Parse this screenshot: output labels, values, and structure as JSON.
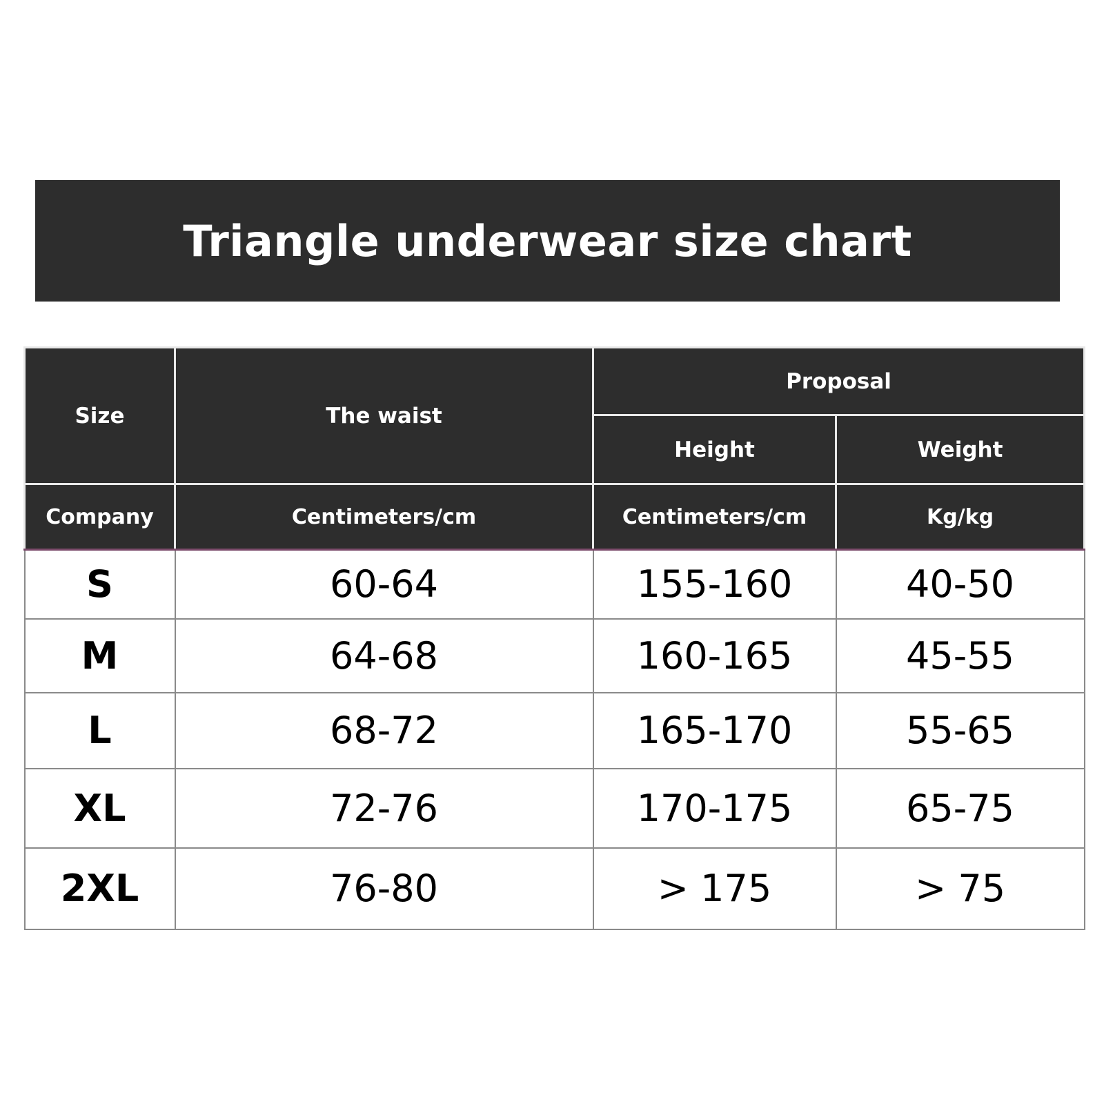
{
  "title": "Triangle underwear size chart",
  "header": {
    "size": "Size",
    "waist": "The waist",
    "proposal": "Proposal",
    "height": "Height",
    "weight": "Weight",
    "company": "Company",
    "waist_unit": "Centimeters/cm",
    "height_unit": "Centimeters/cm",
    "weight_unit": "Kg/kg"
  },
  "rows": [
    {
      "size": "S",
      "waist": "60-64",
      "height": "155-160",
      "weight": "40-50"
    },
    {
      "size": "M",
      "waist": "64-68",
      "height": "160-165",
      "weight": "45-55"
    },
    {
      "size": "L",
      "waist": "68-72",
      "height": "165-170",
      "weight": "55-65"
    },
    {
      "size": "XL",
      "waist": "72-76",
      "height": "170-175",
      "weight": "65-75"
    },
    {
      "size": "2XL",
      "waist": "76-80",
      "height": "> 175",
      "weight": "> 75"
    }
  ]
}
